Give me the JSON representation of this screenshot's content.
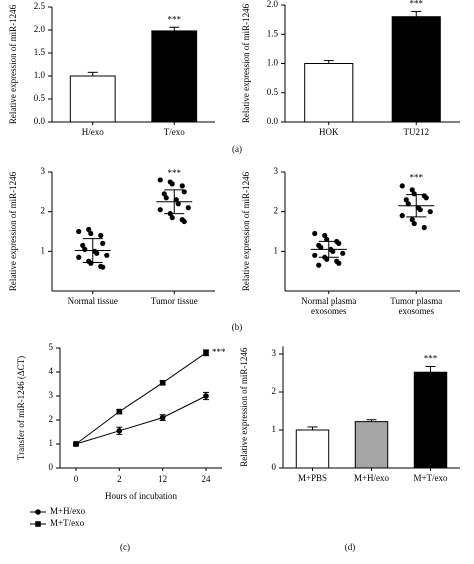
{
  "panel_labels": [
    "(a)",
    "(b)",
    "(c)",
    "(d)"
  ],
  "chart_data": [
    {
      "type": "bar",
      "ylabel": "Relative expression of miR-1246",
      "categories": [
        "H/exo",
        "T/exo"
      ],
      "values": [
        1.0,
        1.98
      ],
      "errors": [
        0.08,
        0.08
      ],
      "colors": [
        "#ffffff",
        "#000000"
      ],
      "significance": [
        null,
        "***"
      ],
      "ylim": [
        0,
        2.5
      ],
      "yticks": [
        {
          "value": 0,
          "label": "0.0"
        },
        {
          "value": 0.5,
          "label": "0.5"
        },
        {
          "value": 1,
          "label": "1.0"
        },
        {
          "value": 1.5,
          "label": "1.5"
        },
        {
          "value": 2,
          "label": "2.0"
        },
        {
          "value": 2.5,
          "label": "2.5"
        }
      ]
    },
    {
      "type": "bar",
      "ylabel": "Relative expression of miR-1246",
      "categories": [
        "HOK",
        "TU212"
      ],
      "values": [
        1.0,
        1.8
      ],
      "errors": [
        0.05,
        0.09
      ],
      "colors": [
        "#ffffff",
        "#000000"
      ],
      "significance": [
        null,
        "***"
      ],
      "ylim": [
        0,
        2
      ],
      "yticks": [
        {
          "value": 0,
          "label": "0.0"
        },
        {
          "value": 0.5,
          "label": "0.5"
        },
        {
          "value": 1,
          "label": "1.0"
        },
        {
          "value": 1.5,
          "label": "1.5"
        },
        {
          "value": 2,
          "label": "2.0"
        }
      ]
    },
    {
      "type": "strip",
      "ylabel": "Relative expression of miR-1246",
      "categories": [
        "Normal tissue",
        "Tumor tissue"
      ],
      "points": [
        [
          1.5,
          1.55,
          1.45,
          1.4,
          1.2,
          1.15,
          1.05,
          1.0,
          0.95,
          0.9,
          0.85,
          0.75,
          0.7,
          0.62,
          0.6
        ],
        [
          2.8,
          2.75,
          2.7,
          2.65,
          2.5,
          2.45,
          2.35,
          2.3,
          2.2,
          2.1,
          2.05,
          1.95,
          1.85,
          1.8,
          1.75
        ]
      ],
      "means": [
        1.02,
        2.25
      ],
      "sds": [
        0.3,
        0.3
      ],
      "significance": [
        null,
        "***"
      ],
      "ylim": [
        0,
        3
      ],
      "yticks": [
        1,
        2,
        3
      ]
    },
    {
      "type": "strip",
      "ylabel": "Relative expression of miR-1246",
      "categories": [
        "Normal plasma exosomes",
        "Tumor plasma exosomes"
      ],
      "points": [
        [
          1.45,
          1.4,
          1.3,
          1.25,
          1.2,
          1.15,
          1.1,
          1.05,
          1.0,
          0.95,
          0.9,
          0.85,
          0.8,
          0.75,
          0.7,
          0.65
        ],
        [
          2.65,
          2.55,
          2.45,
          2.4,
          2.35,
          2.3,
          2.2,
          2.1,
          2.05,
          2.0,
          1.9,
          1.8,
          1.7,
          1.6
        ]
      ],
      "means": [
        1.05,
        2.15
      ],
      "sds": [
        0.2,
        0.28
      ],
      "significance": [
        null,
        "***"
      ],
      "ylim": [
        0,
        3
      ],
      "yticks": [
        1,
        2,
        3
      ]
    },
    {
      "type": "line",
      "ylabel": "Transfer of miR-1246 (ΔCT)",
      "xlabel": "Hours of incubation",
      "categories": [
        "0",
        "2",
        "12",
        "24"
      ],
      "series": [
        {
          "name": "M+H/exo",
          "marker": "circle",
          "color": "#000000",
          "values": [
            1.0,
            1.55,
            2.1,
            3.0
          ],
          "errors": [
            0.05,
            0.15,
            0.12,
            0.15
          ]
        },
        {
          "name": "M+T/exo",
          "marker": "square",
          "color": "#000000",
          "values": [
            1.0,
            2.35,
            3.55,
            4.8
          ],
          "errors": [
            0.05,
            0.08,
            0.08,
            0.12
          ],
          "annotation": "***"
        }
      ],
      "ylim": [
        0,
        5
      ],
      "yticks": [
        0,
        1,
        2,
        3,
        4,
        5
      ]
    },
    {
      "type": "bar",
      "ylabel": "Relative expression of miR-1246",
      "categories": [
        "M+PBS",
        "M+H/exo",
        "M+T/exo"
      ],
      "values": [
        1.0,
        1.22,
        2.52
      ],
      "errors": [
        0.08,
        0.05,
        0.15
      ],
      "colors": [
        "#ffffff",
        "#a6a6a6",
        "#000000"
      ],
      "significance": [
        null,
        null,
        "***"
      ],
      "ylim": [
        0,
        3.2
      ],
      "yticks": [
        0,
        1,
        2,
        3
      ]
    }
  ]
}
